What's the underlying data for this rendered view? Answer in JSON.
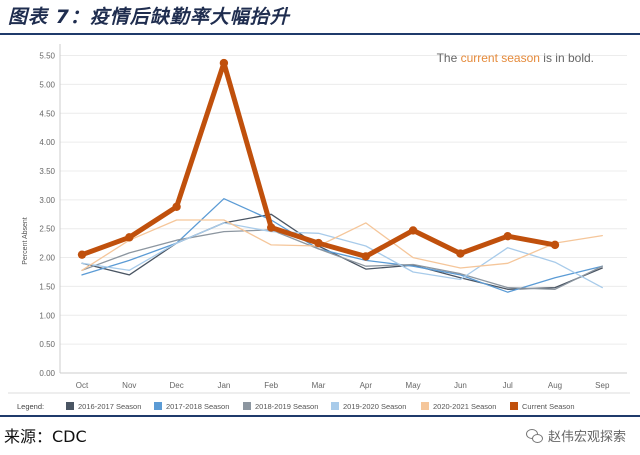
{
  "figure": {
    "title": "图表 7：疫情后缺勤率大幅抬升",
    "source": "来源：CDC",
    "watermark": "赵伟宏观探索"
  },
  "colors": {
    "current": "#c0500c",
    "s2016": "#4a5563",
    "s2017": "#5b9bd5",
    "s2018": "#8c96a0",
    "s2019": "#a8cbea",
    "s2020": "#f5c69a",
    "header_rule": "#1f3a6b"
  },
  "chart_data": {
    "type": "line",
    "annotation": {
      "prefix": "The ",
      "highlight": "current season",
      "suffix": " is in bold."
    },
    "ylabel": "Percent Absent",
    "ylim": [
      0,
      5.7
    ],
    "yticks": [
      "0.00",
      "0.50",
      "1.00",
      "1.50",
      "2.00",
      "2.50",
      "3.00",
      "3.50",
      "4.00",
      "4.50",
      "5.00",
      "5.50"
    ],
    "categories": [
      "Oct",
      "Nov",
      "Dec",
      "Jan",
      "Feb",
      "Mar",
      "Apr",
      "May",
      "Jun",
      "Jul",
      "Aug",
      "Sep"
    ],
    "legend_title": "Legend:",
    "series": [
      {
        "name": "2016-2017 Season",
        "color_key": "s2016",
        "bold": false,
        "values": [
          1.9,
          1.7,
          2.25,
          2.6,
          2.75,
          2.2,
          1.8,
          1.87,
          1.65,
          1.45,
          1.48,
          1.82
        ]
      },
      {
        "name": "2017-2018 Season",
        "color_key": "s2017",
        "bold": false,
        "values": [
          1.7,
          1.95,
          2.25,
          3.02,
          2.65,
          2.15,
          1.95,
          1.85,
          1.7,
          1.4,
          1.65,
          1.85
        ]
      },
      {
        "name": "2018-2019 Season",
        "color_key": "s2018",
        "bold": false,
        "values": [
          1.78,
          2.08,
          2.3,
          2.45,
          2.48,
          2.15,
          1.85,
          1.88,
          1.72,
          1.48,
          1.45,
          1.85
        ]
      },
      {
        "name": "2019-2020 Season",
        "color_key": "s2019",
        "bold": false,
        "values": [
          1.9,
          1.78,
          2.25,
          2.6,
          2.45,
          2.42,
          2.2,
          1.75,
          1.62,
          2.17,
          1.92,
          1.48
        ]
      },
      {
        "name": "2020-2021 Season",
        "color_key": "s2020",
        "bold": false,
        "values": [
          1.78,
          2.3,
          2.65,
          2.65,
          2.22,
          2.2,
          2.6,
          2.0,
          1.82,
          1.9,
          2.25,
          2.38
        ]
      },
      {
        "name": "Current Season",
        "color_key": "current",
        "bold": true,
        "values": [
          2.05,
          2.35,
          2.88,
          5.37,
          2.52,
          2.25,
          2.02,
          2.47,
          2.07,
          2.37,
          2.22,
          null
        ]
      }
    ]
  }
}
